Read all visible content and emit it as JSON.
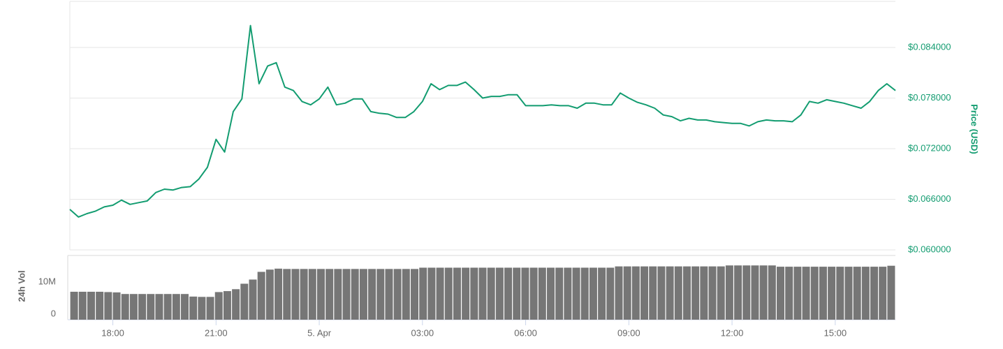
{
  "chart_data": [
    {
      "type": "line",
      "y_label": "Price (USD)",
      "color": "#129c70",
      "x": [
        "16:45",
        "17:00",
        "17:15",
        "17:30",
        "17:45",
        "18:00",
        "18:15",
        "18:30",
        "18:45",
        "19:00",
        "19:15",
        "19:30",
        "19:45",
        "20:00",
        "20:15",
        "20:30",
        "20:45",
        "21:00",
        "21:15",
        "21:30",
        "21:45",
        "22:00",
        "22:15",
        "22:30",
        "22:45",
        "23:00",
        "23:15",
        "23:30",
        "23:45",
        "00:00",
        "00:15",
        "00:30",
        "00:45",
        "01:00",
        "01:15",
        "01:30",
        "01:45",
        "02:00",
        "02:15",
        "02:30",
        "02:45",
        "03:00",
        "03:15",
        "03:30",
        "03:45",
        "04:00",
        "04:15",
        "04:30",
        "04:45",
        "05:00",
        "05:15",
        "05:30",
        "05:45",
        "06:00",
        "06:15",
        "06:30",
        "06:45",
        "07:00",
        "07:15",
        "07:30",
        "07:45",
        "08:00",
        "08:15",
        "08:30",
        "08:45",
        "09:00",
        "09:15",
        "09:30",
        "09:45",
        "10:00",
        "10:15",
        "10:30",
        "10:45",
        "11:00",
        "11:15",
        "11:30",
        "11:45",
        "12:00",
        "12:15",
        "12:30",
        "12:45",
        "13:00",
        "13:15",
        "13:30",
        "13:45",
        "14:00",
        "14:15",
        "14:30",
        "14:45",
        "15:00",
        "15:15",
        "15:30",
        "15:45",
        "16:00",
        "16:15",
        "16:30",
        "16:45"
      ],
      "values": [
        0.0648,
        0.0639,
        0.0643,
        0.0646,
        0.0651,
        0.0653,
        0.0659,
        0.0654,
        0.0656,
        0.0658,
        0.0668,
        0.0672,
        0.0671,
        0.0674,
        0.0675,
        0.0684,
        0.0698,
        0.0731,
        0.0716,
        0.0764,
        0.0779,
        0.0866,
        0.0797,
        0.0818,
        0.0822,
        0.0793,
        0.0789,
        0.0776,
        0.0772,
        0.0779,
        0.0793,
        0.0772,
        0.0774,
        0.0779,
        0.0779,
        0.0764,
        0.0762,
        0.0761,
        0.0757,
        0.0757,
        0.0764,
        0.0776,
        0.0797,
        0.079,
        0.0795,
        0.0795,
        0.0799,
        0.079,
        0.078,
        0.0782,
        0.0782,
        0.0784,
        0.0784,
        0.0771,
        0.0771,
        0.0771,
        0.0772,
        0.0771,
        0.0771,
        0.0768,
        0.0774,
        0.0774,
        0.0772,
        0.0772,
        0.0786,
        0.078,
        0.0775,
        0.0772,
        0.0768,
        0.076,
        0.0758,
        0.0753,
        0.0756,
        0.0754,
        0.0754,
        0.0752,
        0.0751,
        0.075,
        0.075,
        0.0747,
        0.0752,
        0.0754,
        0.0753,
        0.0753,
        0.0752,
        0.076,
        0.0776,
        0.0774,
        0.0778,
        0.0776,
        0.0774,
        0.0771,
        0.0768,
        0.0776,
        0.0789,
        0.0797,
        0.0789
      ],
      "ylim": [
        0.06,
        0.0893
      ],
      "yticks": [
        {
          "value": 0.06,
          "label": "$0.060000"
        },
        {
          "value": 0.066,
          "label": "$0.066000"
        },
        {
          "value": 0.072,
          "label": "$0.072000"
        },
        {
          "value": 0.078,
          "label": "$0.078000"
        },
        {
          "value": 0.084,
          "label": "$0.084000"
        }
      ],
      "xticks": [
        {
          "value": "18:00",
          "label": "18:00"
        },
        {
          "value": "21:00",
          "label": "21:00"
        },
        {
          "value": "00:00",
          "label": "5. Apr"
        },
        {
          "value": "03:00",
          "label": "03:00"
        },
        {
          "value": "06:00",
          "label": "06:00"
        },
        {
          "value": "09:00",
          "label": "09:00"
        },
        {
          "value": "12:00",
          "label": "12:00"
        },
        {
          "value": "15:00",
          "label": "15:00"
        }
      ],
      "grid": true
    },
    {
      "type": "bar",
      "y_label": "24h Vol",
      "color": "#767676",
      "values": [
        8700000,
        8700000,
        8700000,
        8700000,
        8600000,
        8500000,
        8000000,
        8000000,
        8000000,
        8000000,
        8000000,
        8000000,
        8000000,
        8000000,
        7200000,
        7100000,
        7100000,
        8600000,
        8900000,
        9500000,
        11200000,
        12500000,
        14900000,
        15600000,
        15900000,
        15800000,
        15800000,
        15800000,
        15800000,
        15800000,
        15800000,
        15800000,
        15800000,
        15800000,
        15800000,
        15800000,
        15800000,
        15800000,
        15800000,
        15800000,
        15800000,
        16200000,
        16200000,
        16200000,
        16200000,
        16200000,
        16200000,
        16200000,
        16200000,
        16200000,
        16200000,
        16200000,
        16200000,
        16200000,
        16200000,
        16200000,
        16200000,
        16200000,
        16200000,
        16200000,
        16200000,
        16200000,
        16200000,
        16200000,
        16600000,
        16600000,
        16600000,
        16600000,
        16600000,
        16600000,
        16600000,
        16600000,
        16600000,
        16600000,
        16600000,
        16600000,
        16600000,
        16900000,
        16900000,
        16900000,
        16900000,
        16900000,
        16900000,
        16500000,
        16500000,
        16500000,
        16500000,
        16500000,
        16500000,
        16500000,
        16500000,
        16500000,
        16500000,
        16500000,
        16500000,
        16500000,
        16800000
      ],
      "ylim": [
        0,
        20000000
      ],
      "yticks": [
        0,
        {
          "value": 10000000,
          "label": "10M"
        }
      ]
    }
  ]
}
